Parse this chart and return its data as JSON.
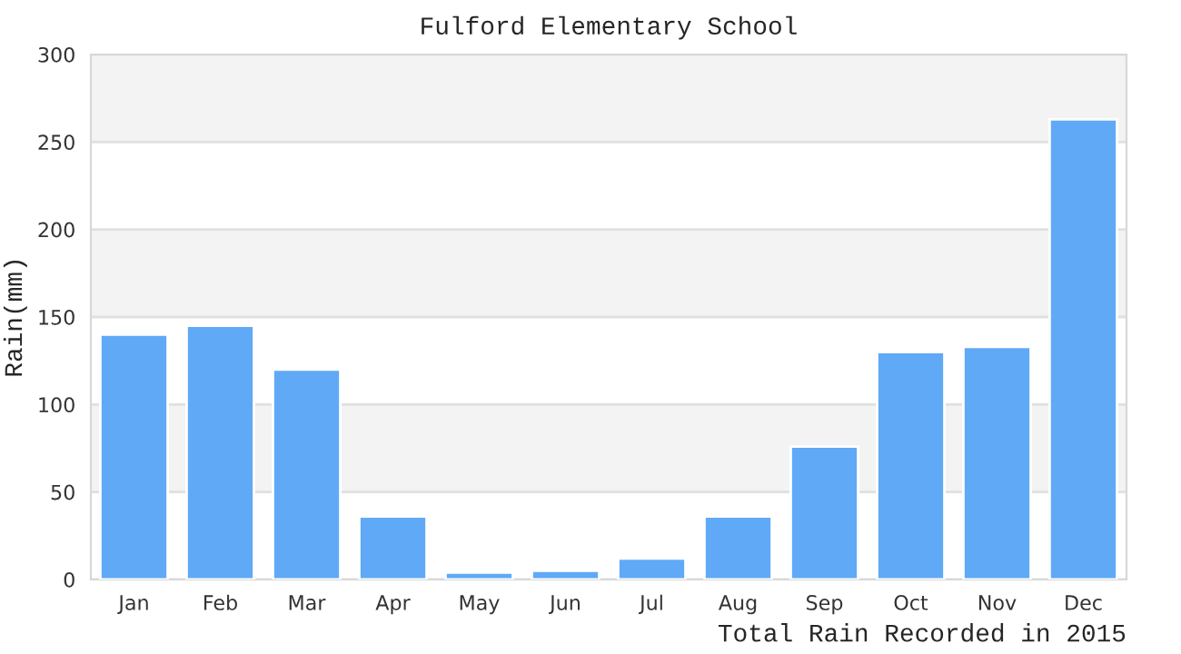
{
  "chart_data": {
    "type": "bar",
    "title": "Fulford Elementary School",
    "xlabel": "Total Rain Recorded in 2015",
    "ylabel": "Rain(mm)",
    "categories": [
      "Jan",
      "Feb",
      "Mar",
      "Apr",
      "May",
      "Jun",
      "Jul",
      "Aug",
      "Sep",
      "Oct",
      "Nov",
      "Dec"
    ],
    "values": [
      140,
      145,
      120,
      36,
      4,
      5,
      12,
      36,
      76,
      130,
      133,
      263
    ],
    "color": "#60a9f6",
    "ylim": [
      0,
      300
    ],
    "yticks": [
      0,
      50,
      100,
      150,
      200,
      250,
      300
    ],
    "grid": "y",
    "bands": [
      {
        "axis": "y",
        "from": 50,
        "to": 100,
        "color": "#f3f3f3"
      },
      {
        "axis": "y",
        "from": 150,
        "to": 200,
        "color": "#f3f3f3"
      },
      {
        "axis": "y",
        "from": 250,
        "to": 300,
        "color": "#f3f3f3"
      }
    ]
  }
}
